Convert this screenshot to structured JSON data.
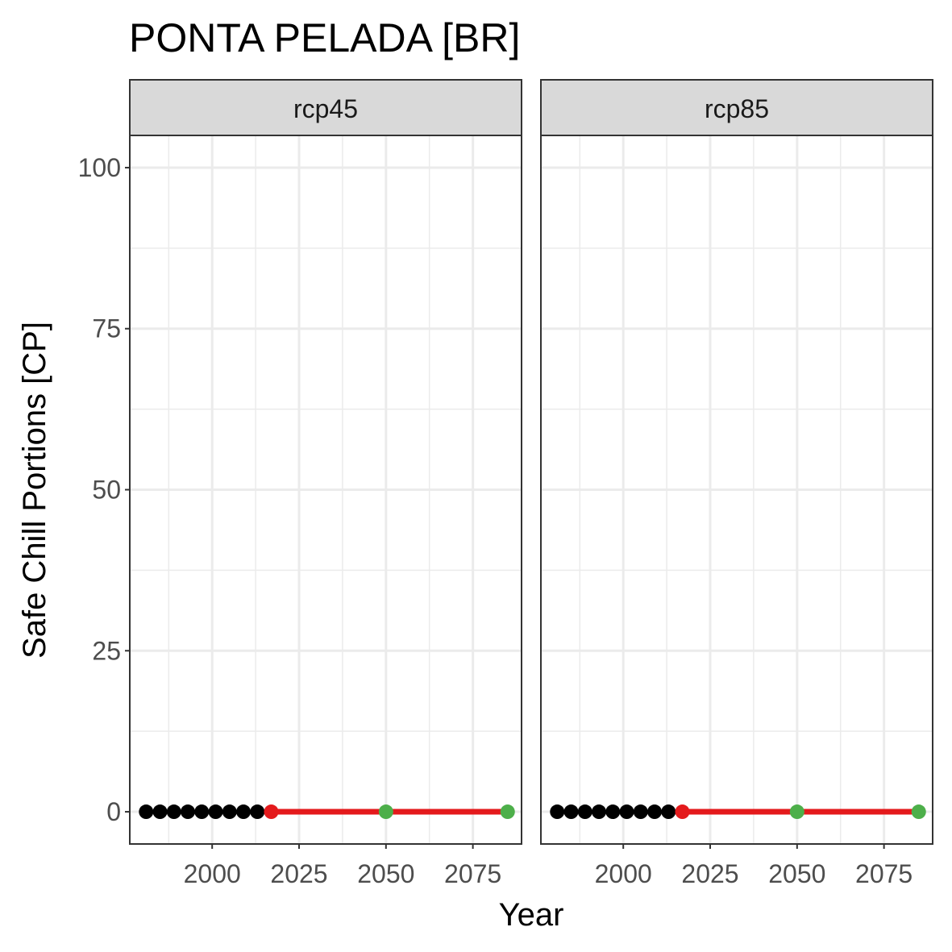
{
  "chart_data": {
    "type": "line",
    "title": "PONTA PELADA [BR]",
    "xlabel": "Year",
    "ylabel": "Safe Chill Portions [CP]",
    "xlim": [
      1976.3,
      2089.0
    ],
    "ylim": [
      -5,
      105
    ],
    "x_ticks": [
      2000,
      2025,
      2050,
      2075
    ],
    "y_ticks": [
      0,
      25,
      50,
      75,
      100
    ],
    "grid": true,
    "colors": {
      "observed": "#000000",
      "projection_line": "#e41a1c",
      "projection_start": "#e41a1c",
      "future_points": "#4daf4a",
      "strip_fill": "#d9d9d9",
      "panel_border": "#333333",
      "grid": "#ebebeb"
    },
    "panels": [
      {
        "label": "rcp45",
        "observed": {
          "x": [
            1981,
            1985,
            1989,
            1993,
            1997,
            2001,
            2005,
            2009,
            2013
          ],
          "y": [
            0,
            0,
            0,
            0,
            0,
            0,
            0,
            0,
            0
          ]
        },
        "projection": {
          "x": [
            2017,
            2050,
            2085
          ],
          "y": [
            0,
            0,
            0
          ]
        }
      },
      {
        "label": "rcp85",
        "observed": {
          "x": [
            1981,
            1985,
            1989,
            1993,
            1997,
            2001,
            2005,
            2009,
            2013
          ],
          "y": [
            0,
            0,
            0,
            0,
            0,
            0,
            0,
            0,
            0
          ]
        },
        "projection": {
          "x": [
            2017,
            2050,
            2085
          ],
          "y": [
            0,
            0,
            0
          ]
        }
      }
    ]
  }
}
